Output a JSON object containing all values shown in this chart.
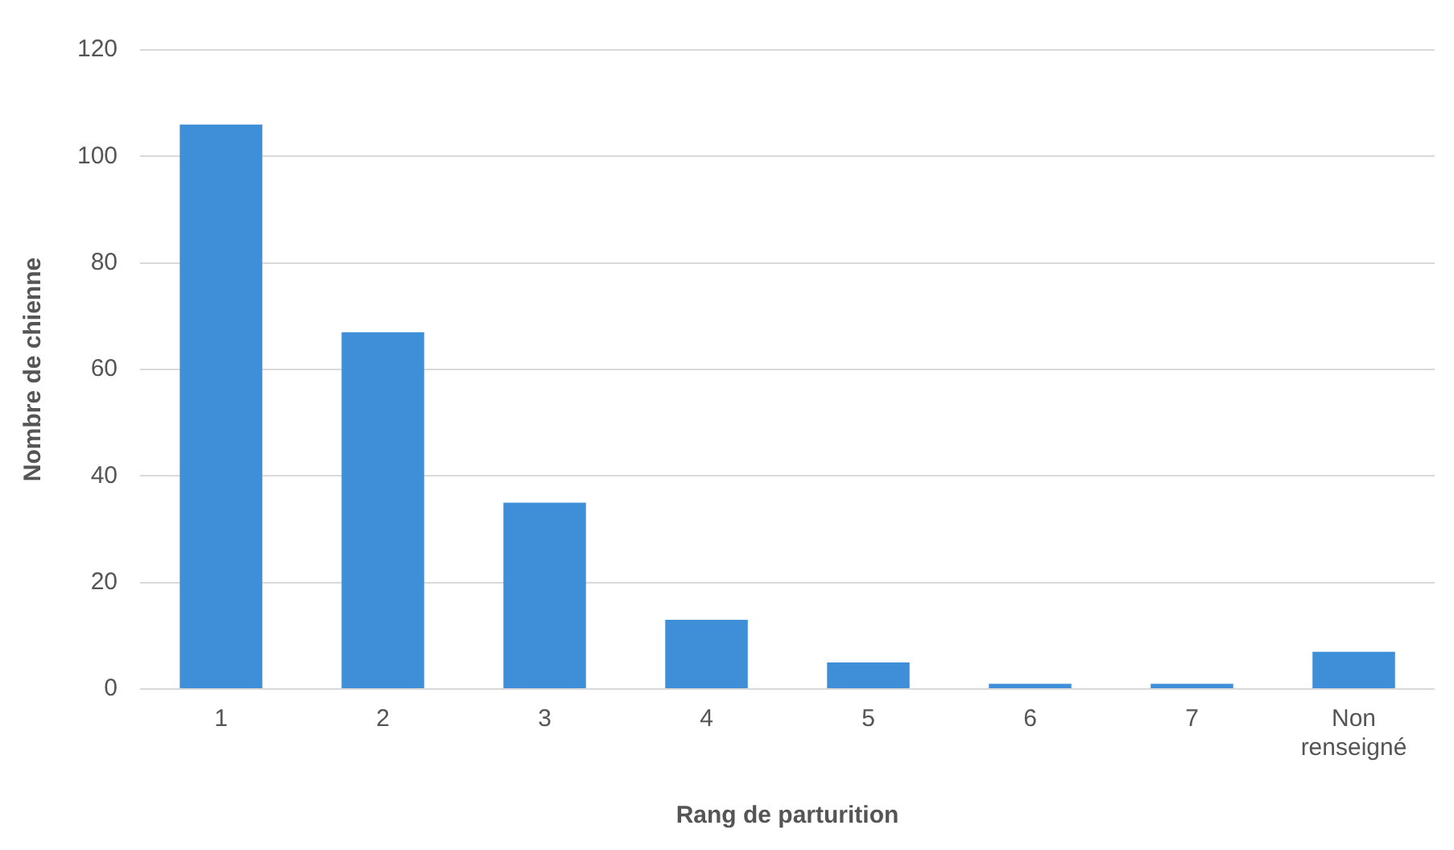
{
  "chart_data": {
    "type": "bar",
    "xlabel": "Rang de parturition",
    "ylabel": "Nombre de chienne",
    "categories": [
      "1",
      "2",
      "3",
      "4",
      "5",
      "6",
      "7",
      "Non renseigné"
    ],
    "series": [
      {
        "color": "#3f8fd8",
        "values": [
          106,
          67,
          35,
          13,
          5,
          1,
          1,
          7
        ]
      }
    ],
    "ylim": [
      0,
      120
    ],
    "yticks": [
      0,
      20,
      40,
      60,
      80,
      100,
      120
    ],
    "grid": "y",
    "legend": false
  }
}
